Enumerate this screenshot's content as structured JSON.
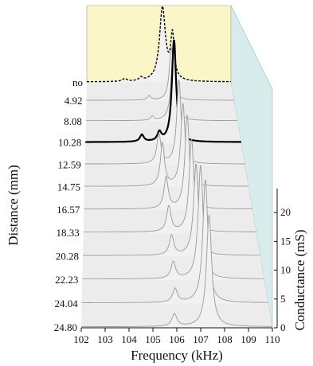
{
  "chart_data": {
    "type": "line",
    "title": "",
    "xlabel": "Frequency (kHz)",
    "ylabel": "Distance (mm)",
    "zlabel": "Conductance (mS)",
    "xlim": [
      102,
      110
    ],
    "zlim": [
      0,
      22
    ],
    "x_ticks": [
      "102",
      "103",
      "104",
      "105",
      "106",
      "107",
      "108",
      "109",
      "110"
    ],
    "z_ticks": [
      "0",
      "5",
      "10",
      "15",
      "20"
    ],
    "distance_labels": [
      "no",
      "4.92",
      "8.08",
      "10.28",
      "12.59",
      "14.75",
      "16.57",
      "18.33",
      "20.28",
      "22.23",
      "24.04",
      "24.80"
    ],
    "colors": {
      "back_panel": "#fbf6c8",
      "side_panel": "#d9ecec",
      "floor": "#ececec",
      "curve": "#9a9a9a",
      "highlight": "#000000"
    },
    "series": [
      {
        "name": "no",
        "style": "dashed",
        "peaks": [
          {
            "f": 104.1,
            "a": 0.5,
            "w": 0.15
          },
          {
            "f": 105.0,
            "a": 0.6,
            "w": 0.12
          },
          {
            "f": 106.2,
            "a": 13.5,
            "w": 0.2
          },
          {
            "f": 106.75,
            "a": 8.0,
            "w": 0.12
          }
        ]
      },
      {
        "name": "4.92",
        "peaks": [
          {
            "f": 105.4,
            "a": 0.8,
            "w": 0.1
          },
          {
            "f": 106.6,
            "a": 9.5,
            "w": 0.13
          }
        ]
      },
      {
        "name": "8.08",
        "peaks": [
          {
            "f": 105.5,
            "a": 0.7,
            "w": 0.1
          },
          {
            "f": 106.62,
            "a": 14.0,
            "w": 0.13
          }
        ]
      },
      {
        "name": "10.28",
        "style": "bold",
        "peaks": [
          {
            "f": 104.9,
            "a": 1.2,
            "w": 0.12
          },
          {
            "f": 105.8,
            "a": 1.5,
            "w": 0.12
          },
          {
            "f": 106.55,
            "a": 17.5,
            "w": 0.13
          }
        ]
      },
      {
        "name": "12.59",
        "peaks": [
          {
            "f": 105.7,
            "a": 5.0,
            "w": 0.12
          },
          {
            "f": 106.7,
            "a": 14.0,
            "w": 0.13
          }
        ]
      },
      {
        "name": "14.75",
        "peaks": [
          {
            "f": 105.8,
            "a": 7.0,
            "w": 0.12
          },
          {
            "f": 106.8,
            "a": 13.5,
            "w": 0.13
          }
        ]
      },
      {
        "name": "16.57",
        "peaks": [
          {
            "f": 105.9,
            "a": 5.0,
            "w": 0.12
          },
          {
            "f": 106.9,
            "a": 15.0,
            "w": 0.13
          }
        ]
      },
      {
        "name": "18.33",
        "peaks": [
          {
            "f": 105.95,
            "a": 4.0,
            "w": 0.12
          },
          {
            "f": 107.0,
            "a": 14.5,
            "w": 0.13
          }
        ]
      },
      {
        "name": "20.28",
        "peaks": [
          {
            "f": 106.0,
            "a": 3.0,
            "w": 0.12
          },
          {
            "f": 107.1,
            "a": 14.0,
            "w": 0.13
          }
        ]
      },
      {
        "name": "22.23",
        "peaks": [
          {
            "f": 106.0,
            "a": 2.5,
            "w": 0.12
          },
          {
            "f": 107.2,
            "a": 17.0,
            "w": 0.13
          }
        ]
      },
      {
        "name": "24.04",
        "peaks": [
          {
            "f": 106.0,
            "a": 2.0,
            "w": 0.12
          },
          {
            "f": 107.3,
            "a": 18.0,
            "w": 0.13
          }
        ]
      },
      {
        "name": "24.80",
        "peaks": [
          {
            "f": 105.9,
            "a": 1.8,
            "w": 0.12
          },
          {
            "f": 107.35,
            "a": 16.0,
            "w": 0.13
          }
        ]
      }
    ]
  }
}
